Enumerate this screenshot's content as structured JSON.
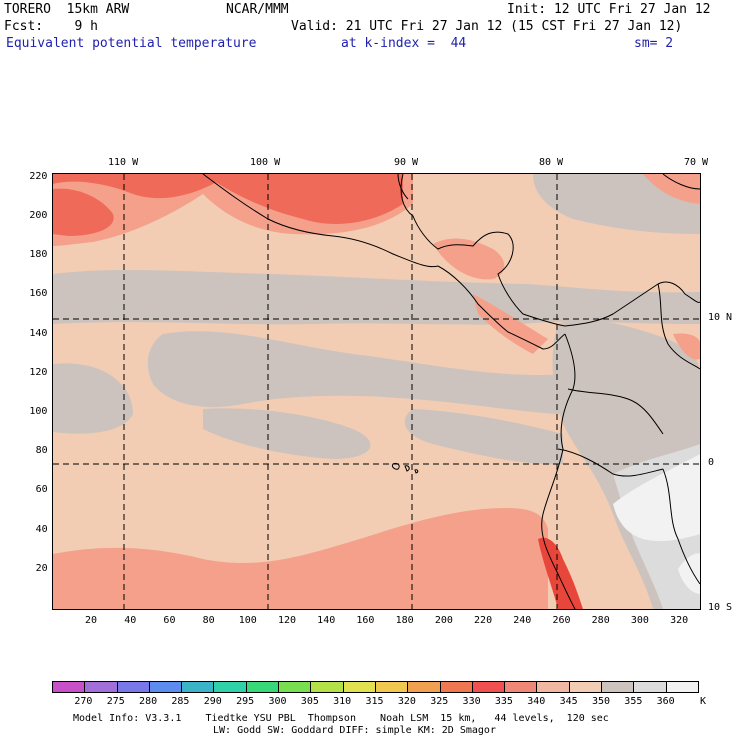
{
  "header": {
    "left_line1": "TORERO  15km ARW",
    "center_line1": "NCAR/MMM",
    "right_line1": "Init: 12 UTC Fri 27 Jan 12",
    "left_line2": "Fcst:    9 h",
    "right_line2": "Valid: 21 UTC Fri 27 Jan 12 (15 CST Fri 27 Jan 12)",
    "field_title": "Equivalent potential temperature",
    "level": "at k-index =  44",
    "smoothing": "sm= 2"
  },
  "map": {
    "top_lon_labels": [
      "110 W",
      "100 W",
      "90 W",
      "80 W",
      "70 W"
    ],
    "right_lat_labels": [
      "10 N",
      "0",
      "10 S"
    ],
    "y_axis_ticks": [
      "20",
      "40",
      "60",
      "80",
      "100",
      "120",
      "140",
      "160",
      "180",
      "200",
      "220"
    ],
    "x_axis_ticks": [
      "20",
      "40",
      "60",
      "80",
      "100",
      "120",
      "140",
      "160",
      "180",
      "200",
      "220",
      "240",
      "260",
      "280",
      "300",
      "320"
    ],
    "grid_columns_max": 330,
    "grid_rows_max": 222,
    "colors": {
      "base": "#f2cdb3",
      "gray": "#ccc3be",
      "light_gray": "#dcdcdc",
      "white": "#f2f2f2",
      "salmon": "#f5a08a",
      "red": "#f06a5a",
      "deep_red": "#e8463a"
    }
  },
  "colorbar": {
    "labels": [
      "270",
      "275",
      "280",
      "285",
      "290",
      "295",
      "300",
      "305",
      "310",
      "315",
      "320",
      "325",
      "330",
      "335",
      "340",
      "345",
      "350",
      "355",
      "360"
    ],
    "unit": "K",
    "colors": [
      "#c850c8",
      "#a070d8",
      "#7878e8",
      "#5c8cf0",
      "#3cb4c8",
      "#30d0a8",
      "#38d878",
      "#78e050",
      "#b4e048",
      "#e0e050",
      "#f0c850",
      "#f0a050",
      "#f07850",
      "#f05050",
      "#f08878",
      "#f0b8a0",
      "#f2cdb3",
      "#ccc3be",
      "#dcdcdc",
      "#f2f2f2"
    ]
  },
  "footer": {
    "line1": "Model Info: V3.3.1    Tiedtke YSU PBL  Thompson    Noah LSM  15 km,   44 levels,  120 sec",
    "line2": "LW: Godd SW: Goddard DIFF: simple KM: 2D Smagor"
  }
}
